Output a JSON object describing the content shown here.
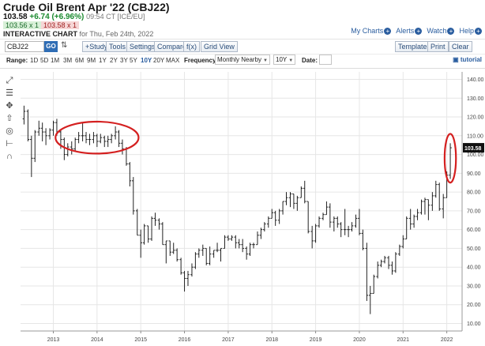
{
  "header": {
    "title": "Crude Oil Brent Apr '22 (CBJ22)",
    "last": "103.58",
    "change": "+6.74 (+6.96%)",
    "time_exchange": "09:54 CT [ICE/EU]",
    "bid": "103.56 x 1",
    "ask": "103.58 x 1",
    "chart_label": "INTERACTIVE CHART",
    "chart_date": "for Thu, Feb 24th, 2022"
  },
  "toplinks": {
    "my_charts": "My Charts",
    "alerts": "Alerts",
    "watch": "Watch",
    "help": "Help"
  },
  "toolbar": {
    "symbol_value": "CBJ22",
    "go_label": "GO",
    "swap_glyph": "⇅",
    "study_label": "+Study",
    "tools_label": "Tools",
    "settings_label": "Settings",
    "compare_label": "Compare",
    "fx_label": "f(x)",
    "grid_view_label": "Grid View",
    "templates_label": "Templates",
    "print_label": "Print",
    "clear_label": "Clear"
  },
  "range_bar": {
    "range_label": "Range:",
    "ranges": [
      "1D",
      "5D",
      "1M",
      "3M",
      "6M",
      "9M",
      "1Y",
      "2Y",
      "3Y",
      "5Y",
      "10Y",
      "20Y",
      "MAX"
    ],
    "active_range": "10Y",
    "frequency_label": "Frequency:",
    "frequency_value": "Monthly Nearby",
    "period_value": "10Y",
    "date_label": "Date:",
    "tutorial_label": "tutorial"
  },
  "drawing_tools": [
    "line-tool-icon",
    "fib-tool-icon",
    "move-tool-icon",
    "arrow-tool-icon",
    "circle-tool-icon",
    "measure-tool-icon",
    "magnet-tool-icon"
  ],
  "colors": {
    "accent": "#2f6db5",
    "up": "#1a8a2e",
    "down": "#a02020",
    "annotation": "#d42020",
    "bars": "#222222"
  },
  "chart_data": {
    "type": "ohlc",
    "frequency": "monthly",
    "last_price_label": "103.58",
    "y_ticks": [
      10,
      20,
      30,
      40,
      50,
      60,
      70,
      80,
      90,
      100,
      110,
      120,
      130,
      140
    ],
    "y_tick_labels": [
      "10.00",
      "20.00",
      "30.00",
      "40.00",
      "50.00",
      "60.00",
      "70.00",
      "80.00",
      "90.00",
      "100.00",
      "110.00",
      "120.00",
      "130.00",
      "140.00"
    ],
    "ylim": [
      6,
      144
    ],
    "xlim": [
      2012.25,
      2022.35
    ],
    "x_tick_labels": [
      {
        "x": 2013,
        "label": "2013"
      },
      {
        "x": 2014,
        "label": "2014"
      },
      {
        "x": 2015,
        "label": "2015"
      },
      {
        "x": 2016,
        "label": "2016"
      },
      {
        "x": 2017,
        "label": "2017"
      },
      {
        "x": 2018,
        "label": "2018"
      },
      {
        "x": 2019,
        "label": "2019"
      },
      {
        "x": 2020,
        "label": "2020"
      },
      {
        "x": 2021,
        "label": "2021"
      },
      {
        "x": 2022,
        "label": "2022"
      }
    ],
    "annotations": [
      {
        "type": "ellipse",
        "cx": 2014.0,
        "cy": 109,
        "rx": 0.95,
        "ry": 8.5
      },
      {
        "type": "ellipse",
        "cx": 2022.08,
        "cy": 98,
        "rx": 0.13,
        "ry": 13
      }
    ],
    "bars": [
      [
        2012.33,
        119,
        126,
        116,
        123
      ],
      [
        2012.42,
        123,
        124,
        107,
        108
      ],
      [
        2012.5,
        108,
        110,
        88,
        98
      ],
      [
        2012.58,
        98,
        113,
        96,
        112
      ],
      [
        2012.67,
        112,
        118,
        110,
        114
      ],
      [
        2012.75,
        114,
        117,
        107,
        112
      ],
      [
        2012.83,
        112,
        114,
        105,
        110
      ],
      [
        2012.92,
        110,
        114,
        108,
        113
      ],
      [
        2013.0,
        113,
        118,
        110,
        117
      ],
      [
        2013.08,
        117,
        119,
        110,
        112
      ],
      [
        2013.17,
        112,
        113,
        103,
        108
      ],
      [
        2013.25,
        108,
        109,
        97,
        100
      ],
      [
        2013.33,
        100,
        106,
        99,
        104
      ],
      [
        2013.42,
        104,
        107,
        100,
        103
      ],
      [
        2013.5,
        103,
        109,
        102,
        108
      ],
      [
        2013.58,
        108,
        112,
        106,
        110
      ],
      [
        2013.67,
        110,
        117,
        107,
        110
      ],
      [
        2013.75,
        110,
        112,
        106,
        108
      ],
      [
        2013.83,
        108,
        111,
        105,
        108
      ],
      [
        2013.92,
        108,
        112,
        106,
        110
      ],
      [
        2014.0,
        110,
        111,
        104,
        107
      ],
      [
        2014.08,
        107,
        111,
        106,
        109
      ],
      [
        2014.17,
        109,
        110,
        104,
        107
      ],
      [
        2014.25,
        107,
        110,
        104,
        108
      ],
      [
        2014.33,
        108,
        111,
        106,
        110
      ],
      [
        2014.42,
        110,
        115,
        108,
        112
      ],
      [
        2014.5,
        112,
        113,
        104,
        106
      ],
      [
        2014.58,
        106,
        108,
        100,
        103
      ],
      [
        2014.67,
        103,
        104,
        94,
        95
      ],
      [
        2014.75,
        95,
        96,
        83,
        86
      ],
      [
        2014.83,
        86,
        88,
        68,
        70
      ],
      [
        2014.92,
        70,
        71,
        57,
        57
      ],
      [
        2015.0,
        57,
        60,
        45,
        53
      ],
      [
        2015.08,
        53,
        63,
        52,
        62
      ],
      [
        2015.17,
        62,
        62,
        53,
        55
      ],
      [
        2015.25,
        55,
        67,
        54,
        66
      ],
      [
        2015.33,
        66,
        69,
        62,
        65
      ],
      [
        2015.42,
        65,
        66,
        60,
        63
      ],
      [
        2015.5,
        63,
        64,
        52,
        52
      ],
      [
        2015.58,
        52,
        54,
        42,
        54
      ],
      [
        2015.67,
        54,
        54,
        46,
        48
      ],
      [
        2015.75,
        48,
        53,
        47,
        49
      ],
      [
        2015.83,
        49,
        50,
        43,
        44
      ],
      [
        2015.92,
        44,
        45,
        36,
        37
      ],
      [
        2016.0,
        37,
        38,
        27,
        34
      ],
      [
        2016.08,
        34,
        38,
        30,
        36
      ],
      [
        2016.17,
        36,
        42,
        35,
        40
      ],
      [
        2016.25,
        40,
        48,
        39,
        47
      ],
      [
        2016.33,
        47,
        50,
        45,
        49
      ],
      [
        2016.42,
        49,
        52,
        46,
        50
      ],
      [
        2016.5,
        50,
        50,
        41,
        42
      ],
      [
        2016.58,
        42,
        51,
        41,
        47
      ],
      [
        2016.67,
        47,
        49,
        45,
        49
      ],
      [
        2016.75,
        49,
        53,
        48,
        49
      ],
      [
        2016.83,
        49,
        50,
        43,
        50
      ],
      [
        2016.92,
        50,
        57,
        50,
        56
      ],
      [
        2017.0,
        56,
        57,
        54,
        55
      ],
      [
        2017.08,
        55,
        57,
        54,
        56
      ],
      [
        2017.17,
        56,
        57,
        50,
        53
      ],
      [
        2017.25,
        53,
        55,
        50,
        52
      ],
      [
        2017.33,
        52,
        55,
        48,
        50
      ],
      [
        2017.42,
        50,
        51,
        44,
        47
      ],
      [
        2017.5,
        47,
        53,
        46,
        52
      ],
      [
        2017.58,
        52,
        53,
        50,
        52
      ],
      [
        2017.67,
        52,
        59,
        52,
        57
      ],
      [
        2017.75,
        57,
        61,
        55,
        60
      ],
      [
        2017.83,
        60,
        64,
        59,
        63
      ],
      [
        2017.92,
        63,
        67,
        61,
        66
      ],
      [
        2018.0,
        66,
        71,
        66,
        69
      ],
      [
        2018.08,
        69,
        70,
        62,
        65
      ],
      [
        2018.17,
        65,
        71,
        63,
        70
      ],
      [
        2018.25,
        70,
        75,
        68,
        75
      ],
      [
        2018.33,
        75,
        80,
        73,
        77
      ],
      [
        2018.42,
        77,
        80,
        72,
        79
      ],
      [
        2018.5,
        79,
        79,
        71,
        74
      ],
      [
        2018.58,
        74,
        78,
        70,
        77
      ],
      [
        2018.67,
        77,
        83,
        77,
        82
      ],
      [
        2018.75,
        82,
        86,
        74,
        75
      ],
      [
        2018.83,
        75,
        75,
        58,
        59
      ],
      [
        2018.92,
        59,
        62,
        50,
        54
      ],
      [
        2019.0,
        54,
        63,
        53,
        62
      ],
      [
        2019.08,
        62,
        67,
        61,
        66
      ],
      [
        2019.17,
        66,
        69,
        65,
        68
      ],
      [
        2019.25,
        68,
        75,
        68,
        72
      ],
      [
        2019.33,
        72,
        74,
        61,
        64
      ],
      [
        2019.42,
        64,
        67,
        59,
        66
      ],
      [
        2019.5,
        66,
        67,
        61,
        63
      ],
      [
        2019.58,
        63,
        64,
        56,
        60
      ],
      [
        2019.67,
        60,
        71,
        57,
        60
      ],
      [
        2019.75,
        60,
        62,
        56,
        60
      ],
      [
        2019.83,
        60,
        64,
        59,
        62
      ],
      [
        2019.92,
        62,
        68,
        61,
        66
      ],
      [
        2020.0,
        66,
        71,
        57,
        58
      ],
      [
        2020.08,
        58,
        60,
        49,
        50
      ],
      [
        2020.17,
        50,
        53,
        22,
        25
      ],
      [
        2020.25,
        25,
        30,
        15,
        26
      ],
      [
        2020.33,
        26,
        36,
        26,
        35
      ],
      [
        2020.42,
        35,
        43,
        34,
        41
      ],
      [
        2020.5,
        41,
        44,
        40,
        43
      ],
      [
        2020.58,
        43,
        46,
        42,
        45
      ],
      [
        2020.67,
        45,
        46,
        39,
        41
      ],
      [
        2020.75,
        41,
        43,
        36,
        38
      ],
      [
        2020.83,
        38,
        48,
        37,
        47
      ],
      [
        2020.92,
        47,
        52,
        46,
        51
      ],
      [
        2021.0,
        51,
        57,
        50,
        55
      ],
      [
        2021.08,
        55,
        67,
        55,
        66
      ],
      [
        2021.17,
        66,
        71,
        60,
        63
      ],
      [
        2021.25,
        63,
        68,
        61,
        67
      ],
      [
        2021.33,
        67,
        71,
        65,
        69
      ],
      [
        2021.42,
        69,
        76,
        68,
        75
      ],
      [
        2021.5,
        75,
        77,
        68,
        76
      ],
      [
        2021.58,
        76,
        76,
        65,
        73
      ],
      [
        2021.67,
        73,
        80,
        70,
        78
      ],
      [
        2021.75,
        78,
        86,
        77,
        84
      ],
      [
        2021.83,
        84,
        85,
        70,
        71
      ],
      [
        2021.92,
        71,
        79,
        66,
        77
      ],
      [
        2022.0,
        77,
        91,
        77,
        89
      ],
      [
        2022.08,
        89,
        106,
        87,
        103.58
      ]
    ]
  }
}
